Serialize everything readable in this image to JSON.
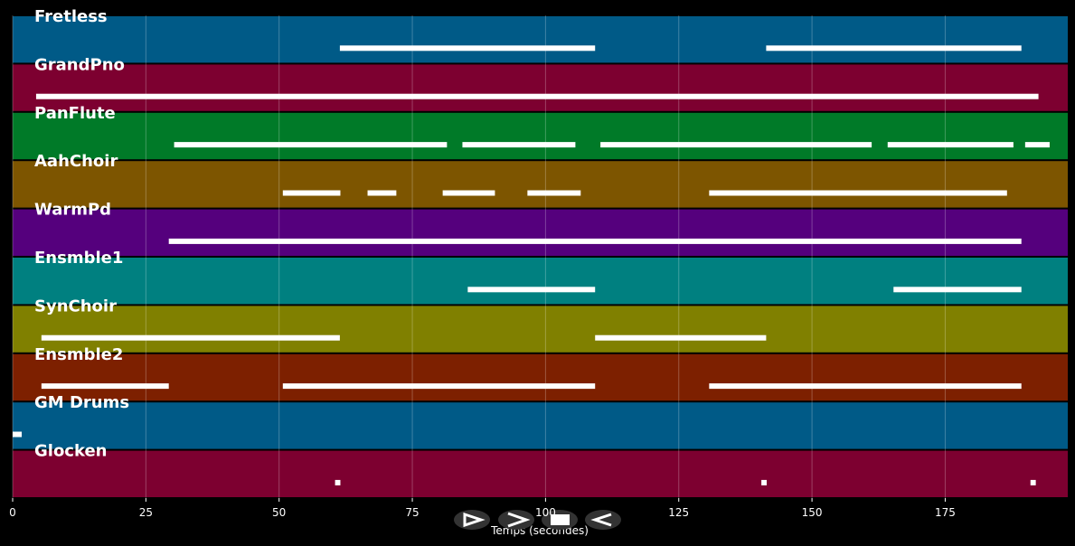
{
  "chart_data": {
    "type": "pianoroll",
    "xlabel": "Temps (secondes)",
    "xlim": [
      0,
      198
    ],
    "xticks": [
      0,
      25,
      50,
      75,
      100,
      125,
      150,
      175
    ],
    "grid": true,
    "tracks": [
      {
        "name": "Fretless",
        "color": "#005a87",
        "notes": [
          [
            61.4,
            109.3
          ],
          [
            141.4,
            189.3
          ]
        ]
      },
      {
        "name": "GrandPno",
        "color": "#7d0030",
        "notes": [
          [
            4.4,
            192.5
          ]
        ]
      },
      {
        "name": "PanFlute",
        "color": "#007a28",
        "notes": [
          [
            30.3,
            81.5
          ],
          [
            84.4,
            105.6
          ],
          [
            110.3,
            161.2
          ],
          [
            164.2,
            187.8
          ],
          [
            190,
            194.6
          ]
        ]
      },
      {
        "name": "AahChoir",
        "color": "#7d5500",
        "notes": [
          [
            50.7,
            61.5
          ],
          [
            66.6,
            72
          ],
          [
            80.7,
            90.5
          ],
          [
            96.6,
            106.6
          ],
          [
            130.7,
            186.6
          ]
        ]
      },
      {
        "name": "WarmPd",
        "color": "#55007d",
        "notes": [
          [
            29.3,
            189.3
          ]
        ]
      },
      {
        "name": "Ensmble1",
        "color": "#008080",
        "notes": [
          [
            85.4,
            109.3
          ],
          [
            165.3,
            189.3
          ]
        ]
      },
      {
        "name": "SynChoir",
        "color": "#808000",
        "notes": [
          [
            5.4,
            61.4
          ],
          [
            109.3,
            141.4
          ]
        ]
      },
      {
        "name": "Ensmble2",
        "color": "#7d2000",
        "notes": [
          [
            5.4,
            29.3
          ],
          [
            50.7,
            109.3
          ],
          [
            130.7,
            189.3
          ]
        ]
      },
      {
        "name": "GM Drums",
        "color": "#005a87",
        "notes": [
          [
            0,
            1.7
          ]
        ]
      },
      {
        "name": "Glocken",
        "color": "#7d0030",
        "notes": [
          [
            60.5,
            61.5
          ],
          [
            140.5,
            141.5
          ],
          [
            191,
            192
          ]
        ]
      }
    ]
  }
}
